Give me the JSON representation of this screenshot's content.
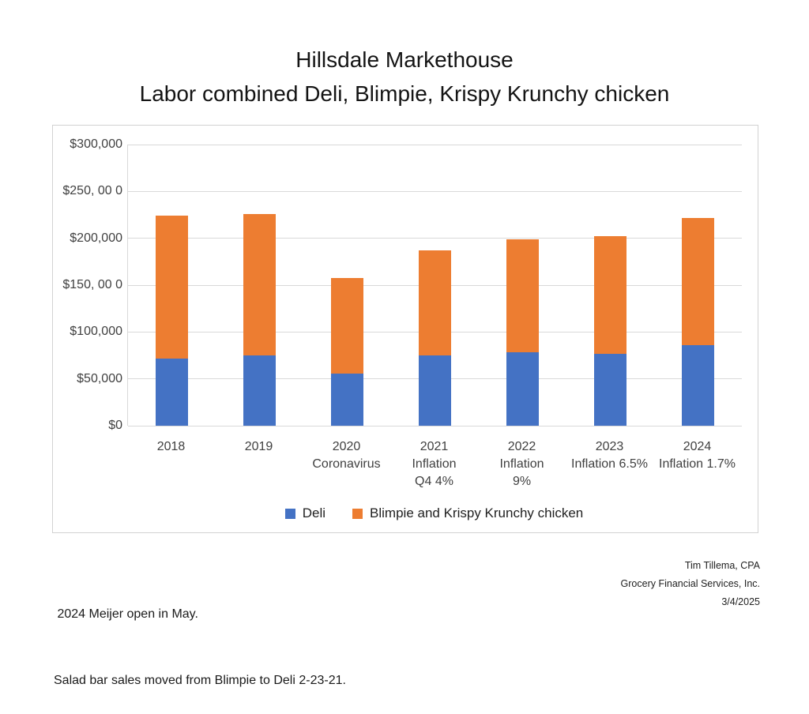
{
  "title": {
    "line1": "Hillsdale Markethouse",
    "line2": "Labor combined Deli, Blimpie, Krispy Krunchy chicken"
  },
  "chart_data": {
    "type": "bar",
    "stacked": true,
    "title": "Hillsdale Markethouse",
    "subtitle": "Labor combined Deli, Blimpie, Krispy Krunchy chicken",
    "categories": [
      "2018",
      "2019",
      "2020",
      "2021",
      "2022",
      "2023",
      "2024"
    ],
    "category_sublabels": [
      [],
      [],
      [
        "Coronavirus"
      ],
      [
        "Inflation",
        "Q4 4%"
      ],
      [
        "Inflation",
        "9%"
      ],
      [
        "Inflation 6.5%"
      ],
      [
        "Inflation 1.7%"
      ]
    ],
    "series": [
      {
        "name": "Deli",
        "color": "#4472C4",
        "values": [
          72000,
          75000,
          56000,
          75000,
          78000,
          77000,
          86000
        ]
      },
      {
        "name": "Blimpie and Krispy Krunchy chicken",
        "color": "#ED7D31",
        "values": [
          152000,
          151000,
          102000,
          112000,
          121000,
          125000,
          136000
        ]
      }
    ],
    "ylim": [
      0,
      300000
    ],
    "ytick_step": 50000,
    "ytick_labels_top_to_bottom": [
      "$300,000",
      "$250, 00 0",
      "$200,000",
      "$150, 00 0",
      "$100,000",
      "$50,000",
      "$0"
    ],
    "grid": true,
    "gridline_color": "#d9d9d9",
    "legend_position": "bottom"
  },
  "legend": {
    "items": [
      {
        "label": "Deli",
        "color": "#4472C4"
      },
      {
        "label": "Blimpie and Krispy Krunchy chicken",
        "color": "#ED7D31"
      }
    ]
  },
  "footnotes": {
    "left_line1": " 2024 Meijer open in May.",
    "left_line2": "Salad bar sales moved from Blimpie to Deli 2-23-21."
  },
  "credits": {
    "line1": "Tim Tillema, CPA",
    "line2": "Grocery Financial Services, Inc.",
    "line3": "3/4/2025"
  }
}
